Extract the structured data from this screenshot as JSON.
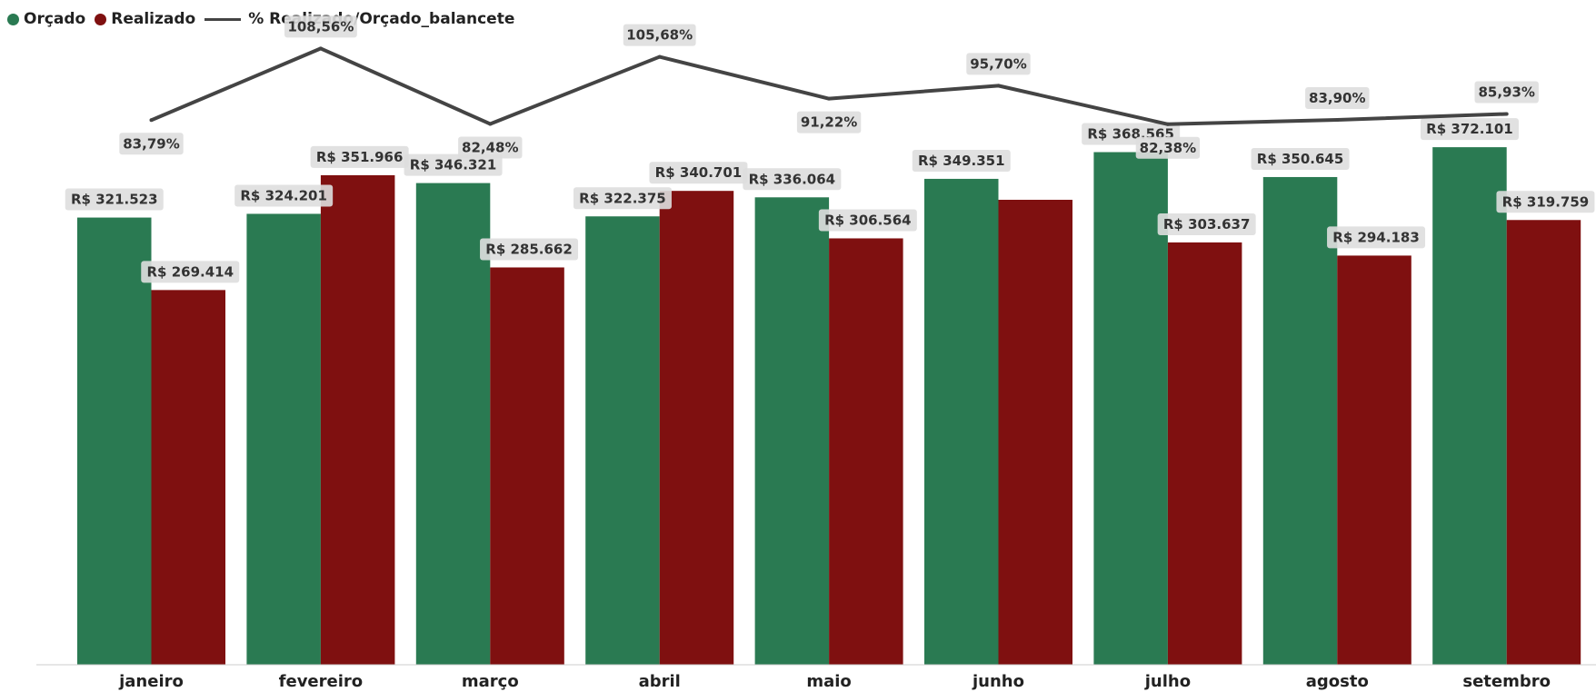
{
  "chart_data": {
    "type": "bar",
    "title": "",
    "xlabel": "",
    "ylabel": "",
    "categories": [
      "janeiro",
      "fevereiro",
      "março",
      "abril",
      "maio",
      "junho",
      "julho",
      "agosto",
      "setembro"
    ],
    "series": [
      {
        "name": "Orçado",
        "type": "bar",
        "color": "#2a7a52",
        "values": [
          321523,
          324201,
          346321,
          322375,
          336064,
          349351,
          368565,
          350645,
          372101
        ],
        "labels": [
          "R$ 321.523",
          "R$ 324.201",
          "R$ 346.321",
          "R$ 322.375",
          "R$ 336.064",
          "R$ 349.351",
          "R$ 368.565",
          "R$ 350.645",
          "R$ 372.101"
        ]
      },
      {
        "name": "Realizado",
        "type": "bar",
        "color": "#7f1010",
        "values": [
          269414,
          351966,
          285662,
          340701,
          306564,
          334300,
          303637,
          294183,
          319759
        ],
        "labels": [
          "R$ 269.414",
          "R$ 351.966",
          "R$ 285.662",
          "R$ 340.701",
          "R$ 306.564",
          "",
          "R$ 303.637",
          "R$ 294.183",
          "R$ 319.759"
        ]
      },
      {
        "name": "% Realizado/Orçado_balancete",
        "type": "line",
        "color": "#444444",
        "values": [
          83.79,
          108.56,
          82.48,
          105.68,
          91.22,
          95.7,
          82.38,
          83.9,
          85.93
        ],
        "labels": [
          "83,79%",
          "108,56%",
          "82,48%",
          "105,68%",
          "91,22%",
          "95,70%",
          "82,38%",
          "83,90%",
          "85,93%"
        ],
        "label_positions": [
          "below",
          "above",
          "below",
          "above",
          "below",
          "above",
          "below",
          "above",
          "above"
        ]
      }
    ],
    "bar_ylim": [
      0,
      380000
    ],
    "line_ylim": [
      82,
      109
    ],
    "legend_position": "top-left",
    "grid": false
  }
}
